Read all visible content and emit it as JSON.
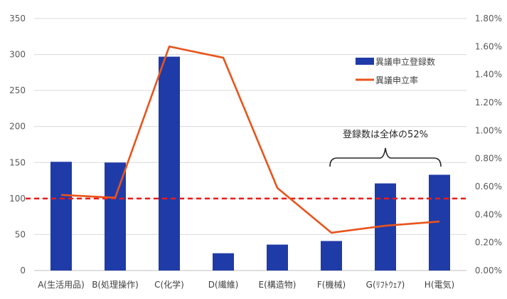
{
  "chart_data": {
    "type": "bar",
    "categories": [
      "A(生活用品)",
      "B(処理操作)",
      "C(化学)",
      "D(繊維)",
      "E(構造物)",
      "F(機械)",
      "G(ﾘﾌﾄｳｪｱ)",
      "H(電気)"
    ],
    "series": [
      {
        "name": "異議申立登録数",
        "type": "bar",
        "axis": "left",
        "color": "#1f3ba8",
        "values": [
          151,
          150,
          297,
          24,
          36,
          41,
          121,
          133
        ]
      },
      {
        "name": "異議申立率",
        "type": "line",
        "axis": "right",
        "color": "#e8541c",
        "values": [
          0.0054,
          0.0052,
          0.016,
          0.0152,
          0.0059,
          0.0027,
          0.0032,
          0.0035
        ]
      }
    ],
    "y_left": {
      "min": 0,
      "max": 350,
      "step": 50,
      "ticks": [
        "0",
        "50",
        "100",
        "150",
        "200",
        "250",
        "300",
        "350"
      ]
    },
    "y_right": {
      "min": 0,
      "max": 0.018,
      "step": 0.002,
      "ticks": [
        "0.00%",
        "0.20%",
        "0.40%",
        "0.60%",
        "0.80%",
        "1.00%",
        "1.20%",
        "1.40%",
        "1.60%",
        "1.80%"
      ]
    },
    "reference_line": {
      "axis": "left",
      "value": 100,
      "color": "#e81c1c",
      "style": "dashed"
    },
    "annotation": {
      "text": "登録数は全体の52%",
      "from_category": 5,
      "to_category": 7
    },
    "grid": true,
    "legend_position": "top-right"
  }
}
